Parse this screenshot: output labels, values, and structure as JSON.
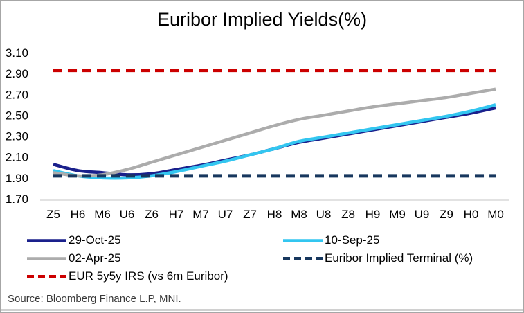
{
  "title": "Euribor Implied Yields(%)",
  "source": "Source: Bloomberg Finance L.P, MNI.",
  "colors": {
    "axis_line": "#d9d9d9",
    "frame_border": "#a6a6a6",
    "bottom_strip": "#d0d0d0",
    "text": "#000000",
    "source_text": "#3a3a3a"
  },
  "chart_data": {
    "type": "line",
    "title": "Euribor Implied Yields(%)",
    "categories": [
      "Z5",
      "H6",
      "M6",
      "U6",
      "Z6",
      "H7",
      "M7",
      "U7",
      "Z7",
      "H8",
      "M8",
      "U8",
      "Z8",
      "H9",
      "M9",
      "U9",
      "Z9",
      "H0",
      "M0"
    ],
    "series": [
      {
        "name": "29-Oct-25",
        "color": "#1a208c",
        "dash": "solid",
        "values": [
          2.03,
          1.97,
          1.95,
          1.93,
          1.94,
          1.98,
          2.02,
          2.07,
          2.12,
          2.18,
          2.24,
          2.28,
          2.32,
          2.36,
          2.4,
          2.44,
          2.48,
          2.52,
          2.57
        ]
      },
      {
        "name": "10-Sep-25",
        "color": "#33c6f0",
        "dash": "solid",
        "values": [
          1.97,
          1.92,
          1.9,
          1.9,
          1.92,
          1.96,
          2.01,
          2.06,
          2.12,
          2.18,
          2.25,
          2.29,
          2.33,
          2.37,
          2.41,
          2.45,
          2.49,
          2.54,
          2.6
        ]
      },
      {
        "name": "02-Apr-25",
        "color": "#acacac",
        "dash": "solid",
        "values": [
          1.95,
          1.92,
          1.93,
          1.98,
          2.05,
          2.12,
          2.19,
          2.26,
          2.33,
          2.4,
          2.46,
          2.5,
          2.54,
          2.58,
          2.61,
          2.64,
          2.67,
          2.71,
          2.75
        ]
      },
      {
        "name": "Euribor Implied Terminal (%)",
        "color": "#17375e",
        "dash": "dashed",
        "values": [
          1.92,
          1.92,
          1.92,
          1.92,
          1.92,
          1.92,
          1.92,
          1.92,
          1.92,
          1.92,
          1.92,
          1.92,
          1.92,
          1.92,
          1.92,
          1.92,
          1.92,
          1.92,
          1.92
        ]
      },
      {
        "name": "EUR 5y5y IRS (vs 6m Euribor)",
        "color": "#cc0000",
        "dash": "dashed",
        "values": [
          2.93,
          2.93,
          2.93,
          2.93,
          2.93,
          2.93,
          2.93,
          2.93,
          2.93,
          2.93,
          2.93,
          2.93,
          2.93,
          2.93,
          2.93,
          2.93,
          2.93,
          2.93,
          2.93
        ]
      }
    ],
    "xlabel": "",
    "ylabel": "",
    "ylim": [
      1.7,
      3.1
    ],
    "ytick_step": 0.2,
    "yticks": [
      "3.10",
      "2.90",
      "2.70",
      "2.50",
      "2.30",
      "2.10",
      "1.90",
      "1.70"
    ],
    "grid": false,
    "legend_position": "bottom"
  }
}
